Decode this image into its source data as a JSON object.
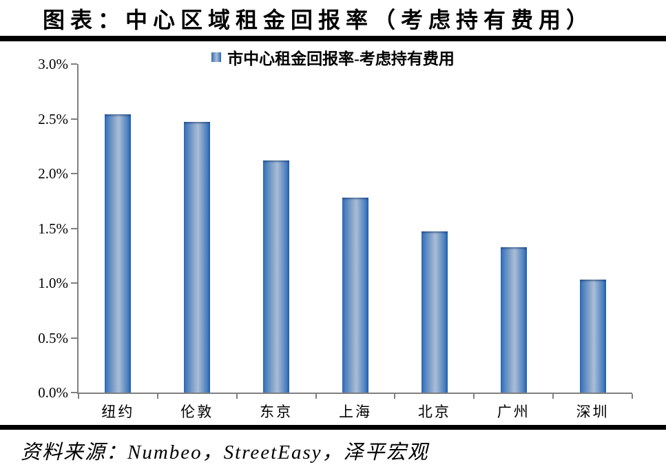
{
  "title": "图表：中心区域租金回报率（考虑持有费用）",
  "source": "资料来源：Numbeo，StreetEasy，泽平宏观",
  "chart_data": {
    "type": "bar",
    "title": "图表：中心区域租金回报率（考虑持有费用）",
    "legend": "市中心租金回报率-考虑持有费用",
    "legend_position": "top-center",
    "categories": [
      "纽约",
      "伦敦",
      "东京",
      "上海",
      "北京",
      "广州",
      "深圳"
    ],
    "values": [
      2.54,
      2.47,
      2.12,
      1.78,
      1.47,
      1.33,
      1.03
    ],
    "unit": "%",
    "xlabel": "",
    "ylabel": "",
    "ylim": [
      0.0,
      3.0
    ],
    "ytick_step": 0.5,
    "ytick_labels": [
      "0.0%",
      "0.5%",
      "1.0%",
      "1.5%",
      "2.0%",
      "2.5%",
      "3.0%"
    ],
    "grid": false,
    "bar_color_gradient": [
      "#2b69b5",
      "#a9bdd6",
      "#1c5ead"
    ],
    "axis_color": "#7f7f7f"
  }
}
